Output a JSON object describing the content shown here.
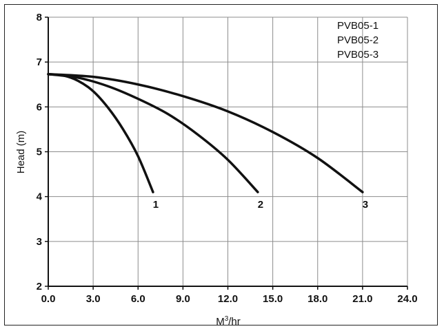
{
  "chart_data": {
    "type": "line",
    "xlabel": "M³/hr",
    "xlabel_base": "M",
    "xlabel_sup": "3",
    "xlabel_rest": "/hr",
    "ylabel": "Head (m)",
    "xlim": [
      0,
      24
    ],
    "ylim": [
      2,
      8
    ],
    "x_ticks": [
      "0.0",
      "3.0",
      "6.0",
      "9.0",
      "12.0",
      "15.0",
      "18.0",
      "21.0",
      "24.0"
    ],
    "y_ticks": [
      "2",
      "3",
      "4",
      "5",
      "6",
      "7",
      "8"
    ],
    "grid": true,
    "legend_position": "top-right",
    "legend": [
      "PVB05-1",
      "PVB05-2",
      "PVB05-3"
    ],
    "series": [
      {
        "name": "PVB05-1",
        "end_label": "1",
        "points": [
          [
            0,
            6.73
          ],
          [
            1,
            6.7
          ],
          [
            2,
            6.58
          ],
          [
            3,
            6.35
          ],
          [
            4,
            5.98
          ],
          [
            5,
            5.5
          ],
          [
            6,
            4.9
          ],
          [
            7,
            4.1
          ]
        ]
      },
      {
        "name": "PVB05-2",
        "end_label": "2",
        "points": [
          [
            0,
            6.73
          ],
          [
            2,
            6.65
          ],
          [
            4,
            6.46
          ],
          [
            6,
            6.18
          ],
          [
            8,
            5.84
          ],
          [
            10,
            5.38
          ],
          [
            12,
            4.82
          ],
          [
            14,
            4.1
          ]
        ]
      },
      {
        "name": "PVB05-3",
        "end_label": "3",
        "points": [
          [
            0,
            6.73
          ],
          [
            3,
            6.67
          ],
          [
            6,
            6.5
          ],
          [
            9,
            6.24
          ],
          [
            12,
            5.9
          ],
          [
            15,
            5.44
          ],
          [
            18,
            4.86
          ],
          [
            21,
            4.1
          ]
        ]
      }
    ]
  }
}
